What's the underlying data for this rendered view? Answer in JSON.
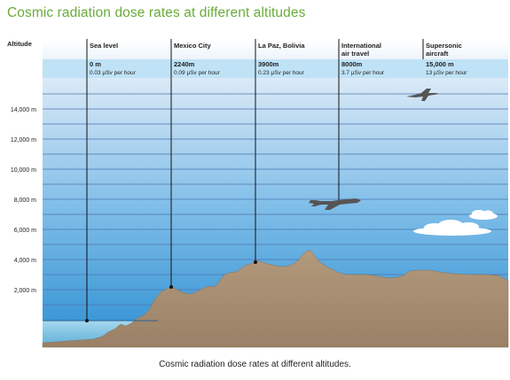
{
  "title": "Cosmic radiation dose rates at different altitudes",
  "caption": "Cosmic radiation dose rates at different altitudes.",
  "altitude_axis": {
    "label": "Altitude",
    "ticks": [
      "14,000 m",
      "12,000 m",
      "10,000 m",
      "8,000 m",
      "6,000 m",
      "4,000 m",
      "2,000 m"
    ]
  },
  "locations": [
    {
      "name": "Sea level",
      "altitude": "0 m",
      "dose": "0.03 µSv per hour"
    },
    {
      "name": "Mexico City",
      "altitude": "2240m",
      "dose": "0.09 µSv per hour"
    },
    {
      "name": "La Paz, Bolivia",
      "altitude": "3900m",
      "dose": "0.23 µSv per hour"
    },
    {
      "name_line1": "International",
      "name_line2": "air travel",
      "altitude": "8000m",
      "dose": "3.7 µSv per hour"
    },
    {
      "name_line1": "Supersonic",
      "name_line2": "aircraft",
      "altitude": "15,000 m",
      "dose": "13 µSv per hour"
    }
  ],
  "colors": {
    "title": "#6aab3a",
    "sky_top": "#ffffff",
    "sky_bottom": "#2d8fd2",
    "band": "#bfe2f6",
    "gridline": "#4f74b0",
    "terrain": "#a48a6e",
    "sea": "#7ec3e4",
    "aircraft": "#555555",
    "cloud": "#ffffff"
  },
  "icons": [
    "jet-icon",
    "airliner-icon",
    "cloud-icon"
  ]
}
